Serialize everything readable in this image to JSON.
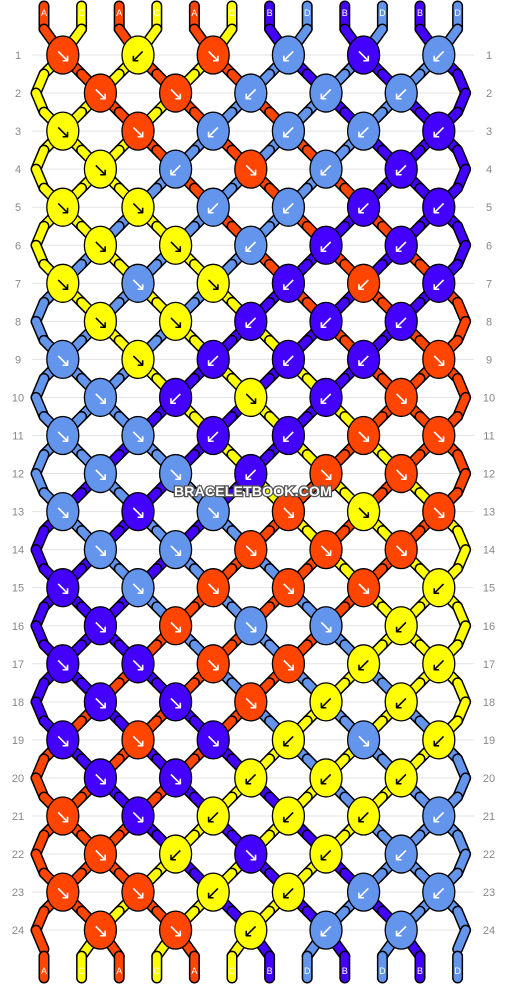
{
  "colors": {
    "A": "#ff4500",
    "B": "#4400ff",
    "C": "#ffff00",
    "D": "#6495ed",
    "grid": "#e3e3e3",
    "row_label": "#888888"
  },
  "strands": [
    "A",
    "C",
    "A",
    "C",
    "A",
    "C",
    "B",
    "D",
    "B",
    "D",
    "B",
    "D"
  ],
  "bottom_strands": [
    "A",
    "C",
    "A",
    "C",
    "A",
    "C",
    "B",
    "D",
    "B",
    "D",
    "B",
    "D"
  ],
  "row_labels": [
    "1",
    "2",
    "3",
    "4",
    "5",
    "6",
    "7",
    "8",
    "9",
    "10",
    "11",
    "12",
    "13",
    "14",
    "15",
    "16",
    "17",
    "18",
    "19",
    "20",
    "21",
    "22",
    "23",
    "24"
  ],
  "watermark": "BRACELETBOOK.COM",
  "knots": [
    [
      "A",
      "C",
      "A",
      "D",
      "B",
      "D"
    ],
    [
      "A",
      "A",
      "D",
      "D",
      "D"
    ],
    [
      "C",
      "A",
      "D",
      "D",
      "D",
      "B"
    ],
    [
      "C",
      "D",
      "A",
      "D",
      "B"
    ],
    [
      "C",
      "C",
      "D",
      "D",
      "B",
      "B"
    ],
    [
      "C",
      "C",
      "D",
      "B",
      "B"
    ],
    [
      "C",
      "D",
      "C",
      "B",
      "A",
      "B"
    ],
    [
      "C",
      "C",
      "B",
      "B",
      "B"
    ],
    [
      "D",
      "C",
      "B",
      "B",
      "B",
      "A"
    ],
    [
      "D",
      "B",
      "C",
      "B",
      "A"
    ],
    [
      "D",
      "D",
      "B",
      "B",
      "A",
      "A"
    ],
    [
      "D",
      "D",
      "B",
      "A",
      "A"
    ],
    [
      "D",
      "B",
      "D",
      "A",
      "C",
      "A"
    ],
    [
      "D",
      "D",
      "A",
      "A",
      "A"
    ],
    [
      "B",
      "D",
      "A",
      "A",
      "A",
      "C"
    ],
    [
      "B",
      "A",
      "D",
      "D",
      "C"
    ],
    [
      "B",
      "B",
      "A",
      "A",
      "C",
      "C"
    ],
    [
      "B",
      "B",
      "A",
      "C",
      "C"
    ],
    [
      "B",
      "A",
      "B",
      "C",
      "D",
      "C"
    ],
    [
      "B",
      "B",
      "C",
      "C",
      "C"
    ],
    [
      "A",
      "B",
      "C",
      "C",
      "C",
      "D"
    ],
    [
      "A",
      "C",
      "B",
      "C",
      "D"
    ],
    [
      "A",
      "A",
      "C",
      "C",
      "D",
      "D"
    ],
    [
      "A",
      "A",
      "C",
      "D",
      "D"
    ]
  ],
  "directions": [
    [
      "↘",
      "↙",
      "↘",
      "↙",
      "↘",
      "↙"
    ],
    [
      "↘",
      "↘",
      "↙",
      "↙",
      "↙"
    ],
    [
      "↘",
      "↘",
      "↙",
      "↙",
      "↙",
      "↙"
    ],
    [
      "↘",
      "↙",
      "↘",
      "↙",
      "↙"
    ],
    [
      "↘",
      "↘",
      "↙",
      "↙",
      "↙",
      "↙"
    ],
    [
      "↘",
      "↘",
      "↙",
      "↙",
      "↙"
    ],
    [
      "↘",
      "↘",
      "↘",
      "↙",
      "↙",
      "↙"
    ],
    [
      "↘",
      "↘",
      "↙",
      "↙",
      "↙"
    ],
    [
      "↘",
      "↘",
      "↙",
      "↙",
      "↙",
      "↘"
    ],
    [
      "↘",
      "↙",
      "↘",
      "↙",
      "↘"
    ],
    [
      "↘",
      "↘",
      "↙",
      "↙",
      "↘",
      "↘"
    ],
    [
      "↘",
      "↘",
      "↙",
      "↘",
      "↘"
    ],
    [
      "↘",
      "↘",
      "↘",
      "↘",
      "↘",
      "↘"
    ],
    [
      "↘",
      "↘",
      "↘",
      "↘",
      "↘"
    ],
    [
      "↘",
      "↘",
      "↘",
      "↘",
      "↘",
      "↙"
    ],
    [
      "↘",
      "↘",
      "↘",
      "↘",
      "↙"
    ],
    [
      "↘",
      "↘",
      "↘",
      "↘",
      "↙",
      "↙"
    ],
    [
      "↘",
      "↘",
      "↘",
      "↙",
      "↙"
    ],
    [
      "↘",
      "↘",
      "↘",
      "↙",
      "↘",
      "↙"
    ],
    [
      "↘",
      "↘",
      "↙",
      "↙",
      "↙"
    ],
    [
      "↘",
      "↘",
      "↙",
      "↙",
      "↙",
      "↙"
    ],
    [
      "↘",
      "↙",
      "↘",
      "↙",
      "↙"
    ],
    [
      "↘",
      "↘",
      "↙",
      "↙",
      "↙",
      "↙"
    ],
    [
      "↘",
      "↘",
      "↙",
      "↙",
      "↙"
    ]
  ]
}
